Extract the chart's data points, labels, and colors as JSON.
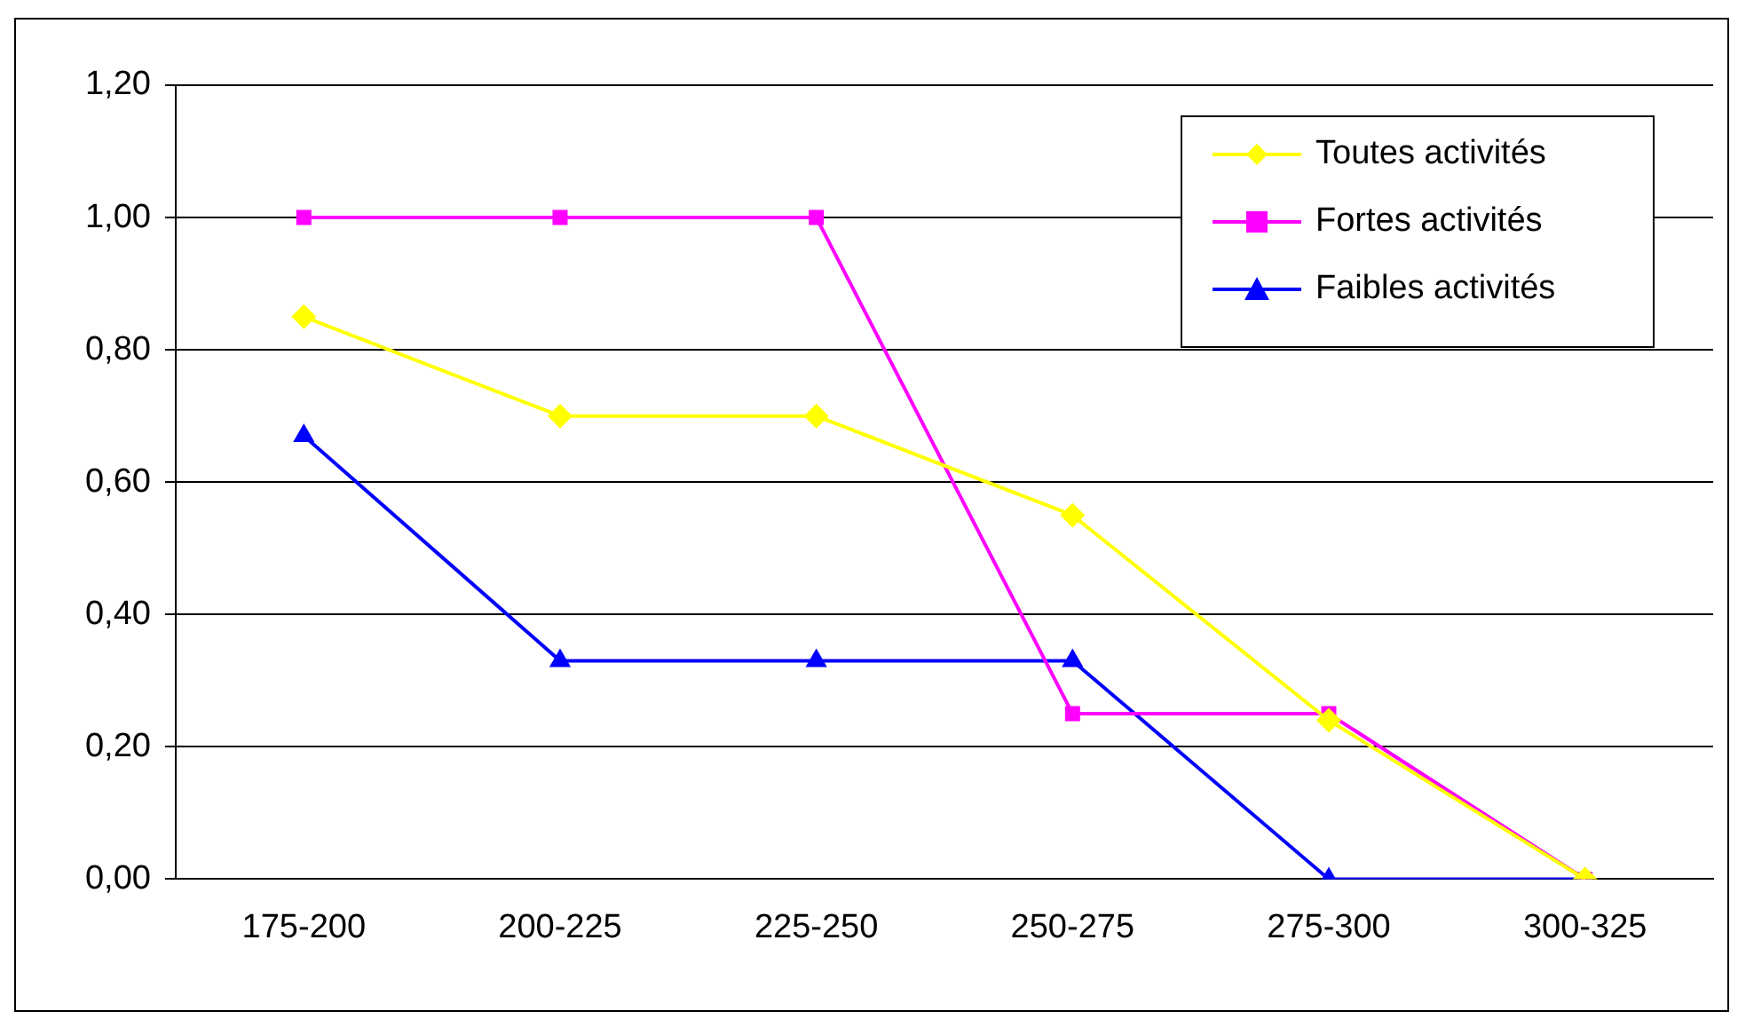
{
  "chart_data": {
    "type": "line",
    "categories": [
      "175-200",
      "200-225",
      "225-250",
      "250-275",
      "275-300",
      "300-325"
    ],
    "series": [
      {
        "name": "Toutes activités",
        "color": "#ffff00",
        "marker": "diamond",
        "values": [
          0.85,
          0.7,
          0.7,
          0.55,
          0.24,
          0
        ]
      },
      {
        "name": "Fortes activités",
        "color": "#ff00ff",
        "marker": "square",
        "values": [
          1,
          1,
          1,
          0.25,
          0.25,
          0
        ]
      },
      {
        "name": "Faibles activités",
        "color": "#0000ff",
        "marker": "triangle",
        "values": [
          0.67,
          0.33,
          0.33,
          0.33,
          0,
          0
        ]
      }
    ],
    "ylim": [
      0,
      1.2
    ],
    "yticks": [
      {
        "value": 0,
        "label": "0,00"
      },
      {
        "value": 0.2,
        "label": "0,20"
      },
      {
        "value": 0.4,
        "label": "0,40"
      },
      {
        "value": 0.6,
        "label": "0,60"
      },
      {
        "value": 0.8,
        "label": "0,80"
      },
      {
        "value": 1,
        "label": "1,00"
      },
      {
        "value": 1.2,
        "label": "1,20"
      }
    ],
    "grid": "y",
    "legend": "top right",
    "line_style": "solid"
  }
}
